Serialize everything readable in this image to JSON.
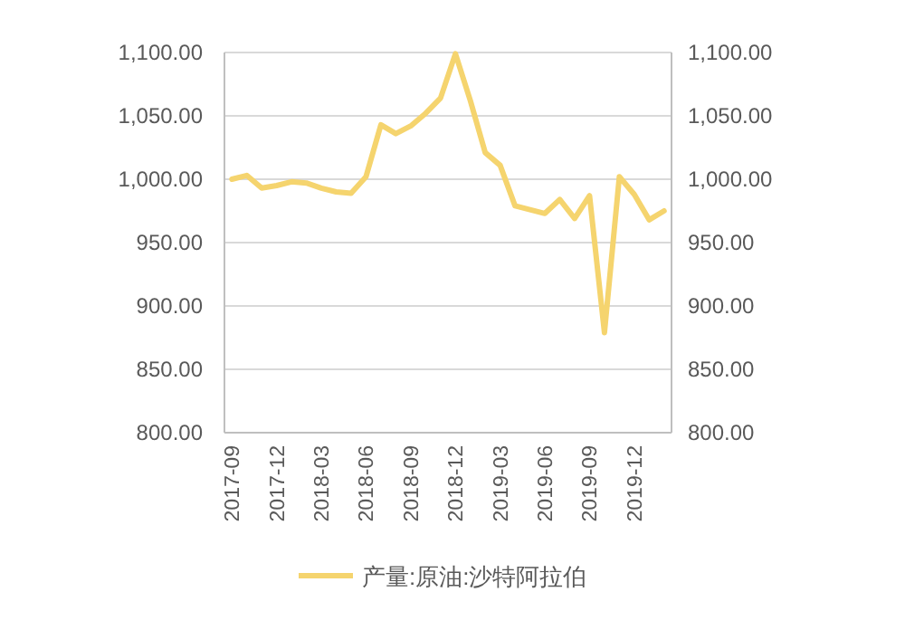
{
  "chart_data": {
    "type": "line",
    "categories": [
      "2017-09",
      null,
      null,
      "2017-12",
      null,
      null,
      "2018-03",
      null,
      null,
      "2018-06",
      null,
      null,
      "2018-09",
      null,
      null,
      "2018-12",
      null,
      null,
      "2019-03",
      null,
      null,
      "2019-06",
      null,
      null,
      "2019-09",
      null,
      null,
      "2019-12",
      null,
      null
    ],
    "series": [
      {
        "name": "产量:原油:沙特阿拉伯",
        "color": "#f5d46e",
        "values": [
          1000,
          1003,
          993,
          995,
          998,
          997,
          993,
          990,
          989,
          1002,
          1043,
          1036,
          1042,
          1052,
          1064,
          1099,
          1062,
          1021,
          1011,
          979,
          976,
          973,
          984,
          969,
          987,
          879,
          1002,
          988,
          968,
          975
        ]
      }
    ],
    "ylim": [
      800,
      1100
    ],
    "yticks": [
      {
        "value": 800,
        "label": "800.00"
      },
      {
        "value": 850,
        "label": "850.00"
      },
      {
        "value": 900,
        "label": "900.00"
      },
      {
        "value": 950,
        "label": "950.00"
      },
      {
        "value": 1000,
        "label": "1,000.00"
      },
      {
        "value": 1050,
        "label": "1,050.00"
      },
      {
        "value": 1100,
        "label": "1,100.00"
      }
    ],
    "y2lim": [
      800,
      1100
    ],
    "y2ticks": [
      {
        "value": 800,
        "label": "800.00"
      },
      {
        "value": 850,
        "label": "850.00"
      },
      {
        "value": 900,
        "label": "900.00"
      },
      {
        "value": 950,
        "label": "950.00"
      },
      {
        "value": 1000,
        "label": "1,000.00"
      },
      {
        "value": 1050,
        "label": "1,050.00"
      },
      {
        "value": 1100,
        "label": "1,100.00"
      }
    ],
    "grid": "y",
    "legend": "bottom"
  }
}
